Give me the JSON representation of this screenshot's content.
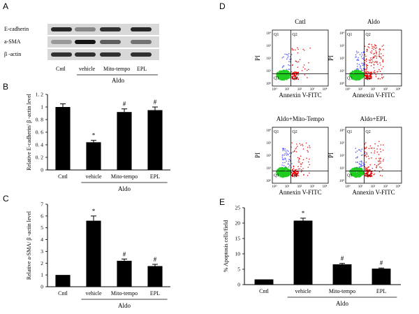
{
  "panel_labels": {
    "a": "A",
    "b": "B",
    "c": "C",
    "d": "D",
    "e": "E"
  },
  "western": {
    "bands": [
      "E-cadherin",
      "a-SMA",
      "β -actin"
    ],
    "lanes": [
      "Cntl",
      "vehicle",
      "Mito-tempo",
      "EPL"
    ],
    "group_label": "Aldo",
    "ecad_intensity": [
      0.85,
      0.35,
      0.8,
      0.85
    ],
    "asma_intensity": [
      0.25,
      0.95,
      0.55,
      0.45
    ],
    "actin_intensity": [
      0.8,
      0.8,
      0.8,
      0.8
    ]
  },
  "flow": {
    "plots": [
      {
        "title": "Cntl",
        "xlabel": "Annexin V-FITC",
        "ylabel": "PI",
        "red_count": 30,
        "blue_count": 25
      },
      {
        "title": "Aldo",
        "xlabel": "Annexin V-FITC",
        "ylabel": "PI",
        "red_count": 120,
        "blue_count": 40
      },
      {
        "title": "Aldo+Mito-Tempo",
        "xlabel": "Annexin V-FITC",
        "ylabel": "PI",
        "red_count": 60,
        "blue_count": 45
      },
      {
        "title": "Aldo+EPL",
        "xlabel": "Annexin V-FITC",
        "ylabel": "PI",
        "red_count": 80,
        "blue_count": 35
      }
    ],
    "quadrants": [
      "Q1",
      "Q2",
      "Q3",
      "Q4"
    ],
    "y_ticks": [
      "10⁴",
      "10³",
      "10²",
      "10¹",
      "10⁰"
    ],
    "x_ticks": [
      "10⁰",
      "10¹",
      "10²",
      "10³",
      "10⁴"
    ]
  },
  "chart_data": [
    {
      "id": "B",
      "type": "bar",
      "categories": [
        "Cntl",
        "vehicle",
        "Mito-tempo",
        "EPL"
      ],
      "values": [
        1.0,
        0.44,
        0.92,
        0.95
      ],
      "errors": [
        0.05,
        0.03,
        0.05,
        0.05
      ],
      "markers": [
        "",
        "*",
        "#",
        "#"
      ],
      "ylabel": "Relative E-cadherin/ β -actin level",
      "xlabel": "Aldo",
      "ylim": [
        0,
        1.2
      ],
      "yticks": [
        "0",
        "0.2",
        "0.4",
        "0.6",
        "0.8",
        "1",
        "1.2"
      ],
      "ytick_labels": [
        "0",
        "0. 2",
        "0. 4",
        "0. 6",
        "0. 8",
        "1",
        "1. 2"
      ]
    },
    {
      "id": "C",
      "type": "bar",
      "categories": [
        "Cntl",
        "vehicle",
        "Mito-tempo",
        "EPL"
      ],
      "values": [
        1.0,
        5.6,
        2.2,
        1.75
      ],
      "errors": [
        0.0,
        0.4,
        0.15,
        0.15
      ],
      "markers": [
        "",
        "*",
        "#",
        "#"
      ],
      "ylabel": "Relative a-SMA/ β -actin level",
      "xlabel": "Aldo",
      "ylim": [
        0,
        7
      ],
      "yticks": [
        "0",
        "1",
        "2",
        "3",
        "4",
        "5",
        "6",
        "7"
      ],
      "ytick_labels": [
        "0",
        "1",
        "2",
        "3",
        "4",
        "5",
        "6",
        "7"
      ]
    },
    {
      "id": "E",
      "type": "bar",
      "categories": [
        "Cntl",
        "vehicle",
        "Mito-tempo",
        "EPL"
      ],
      "values": [
        1.7,
        20.8,
        6.6,
        5.2
      ],
      "errors": [
        0.0,
        0.8,
        0.3,
        0.2
      ],
      "markers": [
        "",
        "*",
        "#",
        "#"
      ],
      "ylabel": "% Apoptosis cells/field",
      "xlabel": "Aldo",
      "ylim": [
        0,
        25
      ],
      "yticks": [
        "0",
        "5",
        "10",
        "15",
        "20",
        "25"
      ],
      "ytick_labels": [
        "0",
        "5",
        "10",
        "15",
        "20",
        "25"
      ]
    }
  ]
}
